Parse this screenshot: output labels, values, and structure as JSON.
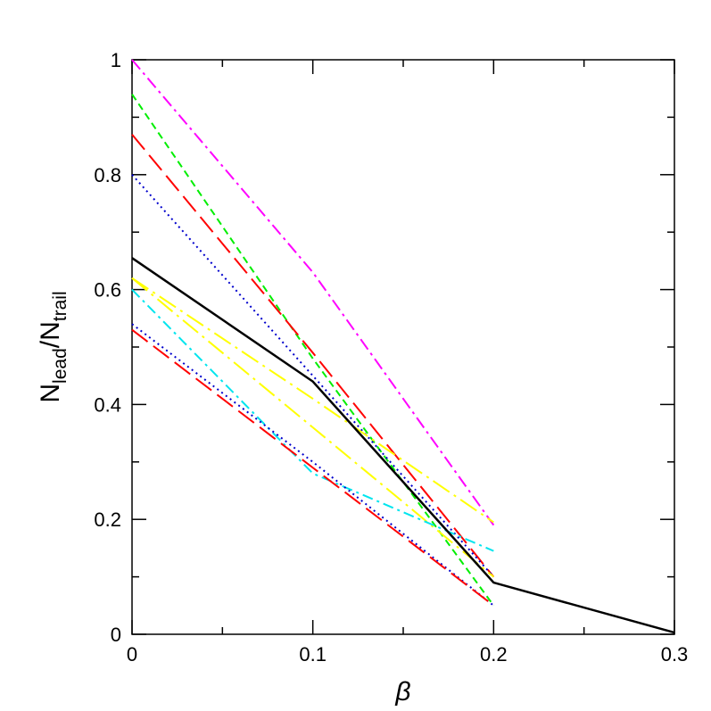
{
  "chart_data": {
    "type": "line",
    "xlabel": "β",
    "ylabel": [
      "N",
      "lead",
      "/N",
      "trail"
    ],
    "xlim": [
      0,
      0.3
    ],
    "ylim": [
      0,
      1
    ],
    "xticks": [
      0,
      0.1,
      0.2,
      0.3
    ],
    "yticks": [
      0,
      0.2,
      0.4,
      0.6,
      0.8,
      1
    ],
    "xminorticks": [
      0.05,
      0.15,
      0.25
    ],
    "yminorticks": [
      0.1,
      0.3,
      0.5,
      0.7,
      0.9
    ],
    "series": [
      {
        "color": "#ff00ff",
        "x": [
          0,
          0.1,
          0.2
        ],
        "values": [
          1.0,
          0.63,
          0.19
        ]
      },
      {
        "color": "#00ee00",
        "x": [
          0,
          0.1,
          0.2
        ],
        "values": [
          0.94,
          0.48,
          0.05
        ]
      },
      {
        "color": "#ff0000",
        "x": [
          0,
          0.1,
          0.2
        ],
        "values": [
          0.87,
          0.49,
          0.1
        ]
      },
      {
        "color": "#0000cc",
        "x": [
          0,
          0.1,
          0.2
        ],
        "values": [
          0.8,
          0.45,
          0.1
        ]
      },
      {
        "color": "#ffff00",
        "x": [
          0,
          0.1,
          0.2
        ],
        "values": [
          0.62,
          0.41,
          0.195
        ]
      },
      {
        "color": "#ffff00",
        "x": [
          0,
          0.1,
          0.2
        ],
        "values": [
          0.62,
          0.36,
          0.1
        ]
      },
      {
        "color": "#00e5ee",
        "x": [
          0,
          0.1,
          0.2
        ],
        "values": [
          0.6,
          0.28,
          0.145
        ]
      },
      {
        "color": "#0000cc",
        "x": [
          0,
          0.1,
          0.2
        ],
        "values": [
          0.54,
          0.3,
          0.05
        ]
      },
      {
        "color": "#ff0000",
        "x": [
          0,
          0.1,
          0.2
        ],
        "values": [
          0.53,
          0.29,
          0.05
        ]
      },
      {
        "color": "#000000",
        "x": [
          0,
          0.1,
          0.2,
          0.3
        ],
        "values": [
          0.655,
          0.44,
          0.09,
          0.003
        ]
      }
    ]
  }
}
